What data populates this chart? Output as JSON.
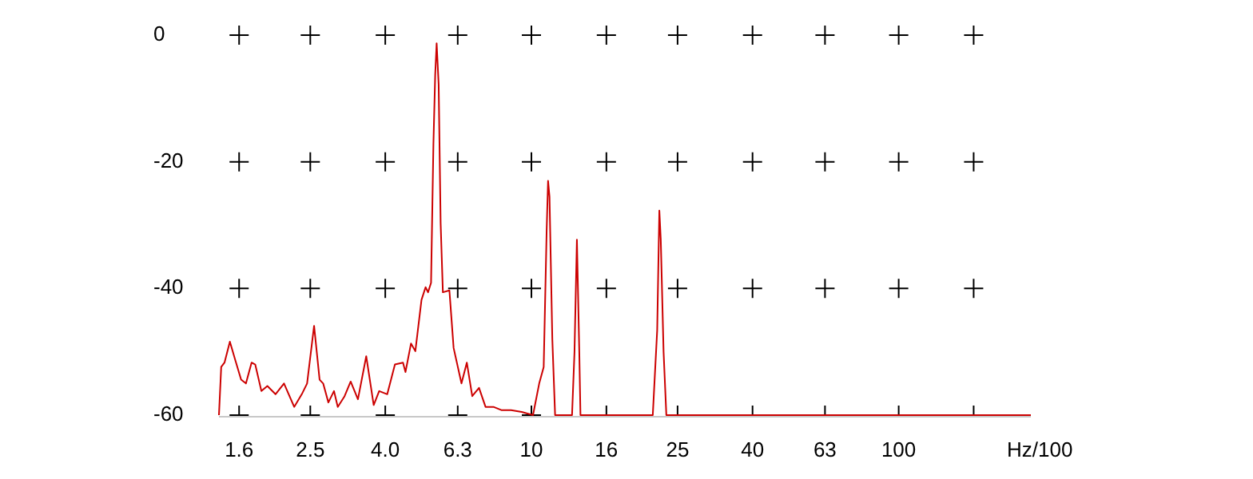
{
  "chart_data": {
    "type": "line",
    "xlabel": "Hz/100",
    "log": "x",
    "grid": true,
    "marker": "none",
    "line_style": "solid",
    "xlim": [
      1.41,
      229
    ],
    "ylim": [
      -60,
      0
    ],
    "xticks": [
      1.6,
      2.5,
      {
        "value": 4,
        "label": "4.0"
      },
      6.3,
      10,
      16,
      25,
      40,
      63,
      100,
      {
        "value": 160,
        "label": null
      }
    ],
    "yticks": [
      0,
      -20,
      -40,
      -60
    ],
    "x": [
      1.41,
      1.43,
      1.46,
      1.51,
      1.56,
      1.62,
      1.67,
      1.73,
      1.77,
      1.84,
      1.91,
      2.01,
      2.12,
      2.26,
      2.37,
      2.45,
      2.56,
      2.65,
      2.71,
      2.8,
      2.9,
      2.97,
      3.1,
      3.22,
      3.37,
      3.55,
      3.72,
      3.85,
      4.05,
      4.25,
      4.47,
      4.54,
      4.7,
      4.83,
      5.02,
      5.15,
      5.23,
      5.33,
      5.41,
      5.47,
      5.52,
      5.59,
      5.66,
      5.74,
      5.98,
      6.14,
      6.45,
      6.67,
      6.9,
      7.2,
      7.5,
      7.88,
      8.28,
      8.8,
      9.41,
      10.1,
      10.5,
      10.8,
      11,
      11.1,
      11.2,
      11.4,
      11.6,
      12.9,
      13.1,
      13.3,
      13.5,
      13.6,
      21.4,
      22,
      22.3,
      22.5,
      22.9,
      23.3,
      229
    ],
    "series": [
      {
        "color": "#cc0000",
        "values": [
          -60,
          -52.4,
          -51.7,
          -48.4,
          -51.2,
          -54.4,
          -55,
          -51.7,
          -52,
          -56.2,
          -55.4,
          -56.7,
          -55,
          -58.7,
          -56.7,
          -55,
          -45.9,
          -54.4,
          -55,
          -58,
          -56.2,
          -58.7,
          -57,
          -54.7,
          -57.5,
          -50.7,
          -58.4,
          -56.2,
          -56.7,
          -52,
          -51.7,
          -53.2,
          -48.7,
          -49.9,
          -41.8,
          -39.8,
          -40.6,
          -39.1,
          -17.1,
          -6.3,
          -1.3,
          -7.8,
          -29.7,
          -40.6,
          -40.3,
          -49.4,
          -55,
          -51.7,
          -57,
          -55.7,
          -58.7,
          -58.7,
          -59.2,
          -59.2,
          -59.5,
          -60,
          -55,
          -52.4,
          -31,
          -23,
          -25.5,
          -48,
          -60,
          -60,
          -50,
          -32.3,
          -50,
          -60,
          -60,
          -46.6,
          -27.7,
          -32.3,
          -50,
          -60,
          -60
        ]
      }
    ]
  }
}
